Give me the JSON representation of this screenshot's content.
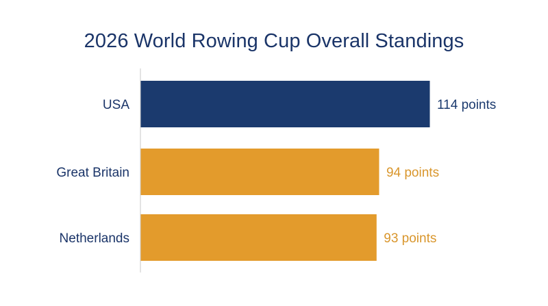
{
  "chart_data": {
    "type": "bar",
    "orientation": "horizontal",
    "title": "2026 World Rowing Cup Overall Standings",
    "categories": [
      "USA",
      "Great Britain",
      "Netherlands"
    ],
    "values": [
      114,
      94,
      93
    ],
    "value_labels": [
      "114 points",
      "94 points",
      "93 points"
    ],
    "xlim": [
      0,
      120
    ],
    "grid": false,
    "legend": "none",
    "colors": {
      "leader": "#1b3a6e",
      "others": "#e39b2c",
      "leader_label": "#1b3a6e",
      "others_label": "#d9962c",
      "category_label": "#1a3468",
      "axis": "#d0d0d0"
    }
  }
}
